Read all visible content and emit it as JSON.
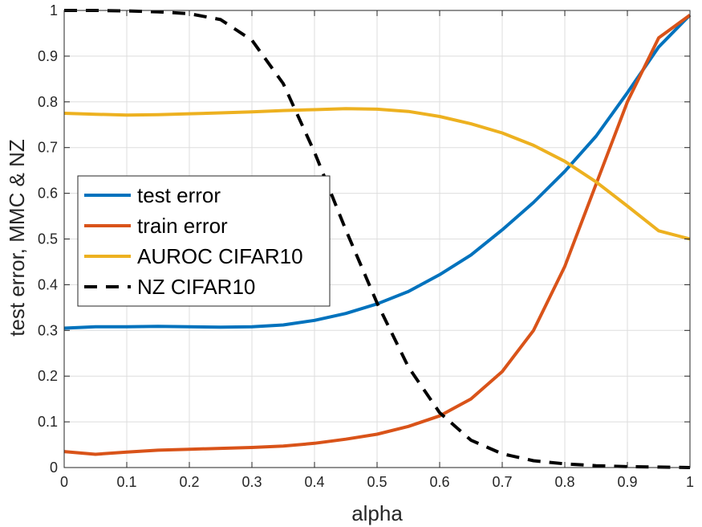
{
  "chart_data": {
    "type": "line",
    "title": "",
    "xlabel": "alpha",
    "ylabel": "test error, MMC & NZ",
    "xlim": [
      0,
      1
    ],
    "ylim": [
      0,
      1
    ],
    "grid": true,
    "legend_placement": "middle-left",
    "x_ticks": [
      "0",
      "0.1",
      "0.2",
      "0.3",
      "0.4",
      "0.5",
      "0.6",
      "0.7",
      "0.8",
      "0.9",
      "1"
    ],
    "y_ticks": [
      "0",
      "0.1",
      "0.2",
      "0.3",
      "0.4",
      "0.5",
      "0.6",
      "0.7",
      "0.8",
      "0.9",
      "1"
    ],
    "x": [
      0,
      0.05,
      0.1,
      0.15,
      0.2,
      0.25,
      0.3,
      0.35,
      0.4,
      0.45,
      0.5,
      0.55,
      0.6,
      0.65,
      0.7,
      0.75,
      0.8,
      0.85,
      0.9,
      0.95,
      1
    ],
    "series": [
      {
        "name": "test error",
        "color": "#0072BD",
        "style": "solid",
        "values": [
          0.305,
          0.308,
          0.308,
          0.309,
          0.308,
          0.307,
          0.308,
          0.312,
          0.322,
          0.337,
          0.358,
          0.385,
          0.422,
          0.465,
          0.52,
          0.58,
          0.648,
          0.725,
          0.82,
          0.92,
          0.99
        ]
      },
      {
        "name": "train error",
        "color": "#D95319",
        "style": "solid",
        "values": [
          0.035,
          0.029,
          0.034,
          0.038,
          0.04,
          0.042,
          0.044,
          0.047,
          0.053,
          0.062,
          0.073,
          0.09,
          0.113,
          0.15,
          0.21,
          0.3,
          0.44,
          0.62,
          0.8,
          0.94,
          0.99
        ]
      },
      {
        "name": "AUROC CIFAR10",
        "color": "#EDB120",
        "style": "solid",
        "values": [
          0.775,
          0.773,
          0.771,
          0.772,
          0.774,
          0.776,
          0.778,
          0.781,
          0.783,
          0.785,
          0.784,
          0.779,
          0.768,
          0.752,
          0.732,
          0.705,
          0.67,
          0.625,
          0.572,
          0.518,
          0.5
        ]
      },
      {
        "name": "NZ CIFAR10",
        "color": "#000000",
        "style": "dashed",
        "values": [
          1.0,
          1.0,
          0.999,
          0.997,
          0.993,
          0.98,
          0.935,
          0.84,
          0.69,
          0.52,
          0.36,
          0.22,
          0.12,
          0.06,
          0.03,
          0.015,
          0.008,
          0.004,
          0.002,
          0.001,
          0.0
        ]
      }
    ]
  }
}
